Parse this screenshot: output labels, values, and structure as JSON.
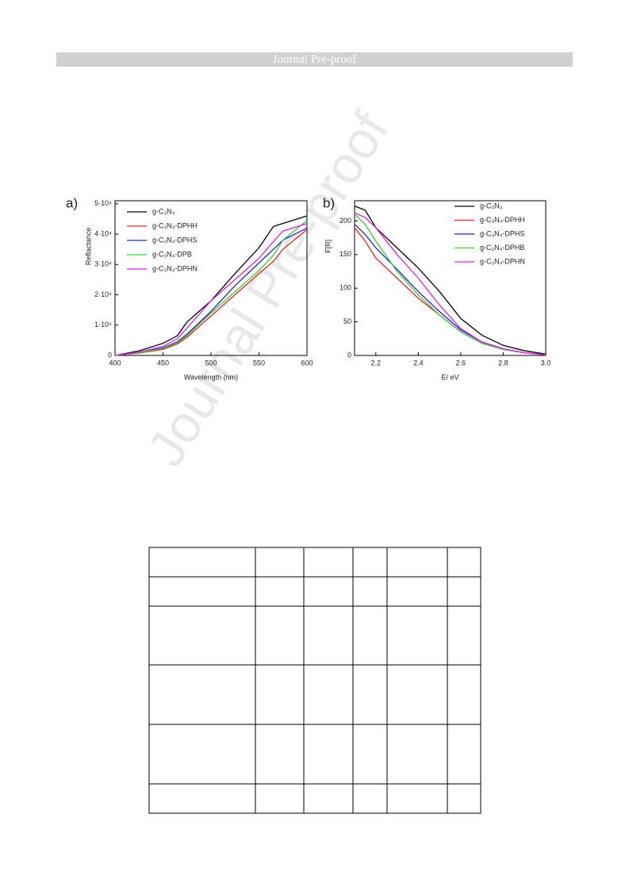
{
  "header": "Journal Pre-proof",
  "watermark": "Journal Pre-proof",
  "chart_data": [
    {
      "type": "line",
      "panel": "a)",
      "xlabel": "Wavelength (nm)",
      "ylabel": "Reflactance",
      "xlim": [
        400,
        600
      ],
      "xticks": [
        400,
        450,
        500,
        550,
        600
      ],
      "ylim": [
        0,
        51000
      ],
      "yticks": [
        0,
        {
          "value": 10000,
          "label": "1·10⁴"
        },
        {
          "value": 20000,
          "label": "2·10⁴"
        },
        {
          "value": 30000,
          "label": "3·10⁴"
        },
        {
          "value": 40000,
          "label": "4·10⁴"
        },
        {
          "value": 50000,
          "label": "5·10⁴"
        }
      ],
      "x": [
        400,
        425,
        450,
        465,
        475,
        500,
        525,
        550,
        565,
        575,
        600
      ],
      "series": [
        {
          "name": "g-C₃N₄",
          "color": "#000000",
          "values": [
            0,
            1500,
            4000,
            6500,
            11000,
            18000,
            27000,
            35500,
            42500,
            43500,
            46000
          ]
        },
        {
          "name": "g-C₃N₄-DPHH",
          "color": "#e8221c",
          "values": [
            0,
            800,
            2000,
            3800,
            6000,
            13000,
            20000,
            27000,
            31000,
            35000,
            41500
          ]
        },
        {
          "name": "g-C₃N₄-DPHS",
          "color": "#2020d0",
          "values": [
            0,
            900,
            2500,
            4500,
            7000,
            14500,
            23000,
            30500,
            35000,
            38000,
            42000
          ]
        },
        {
          "name": "g-C₃N₄-DPB",
          "color": "#30d030",
          "values": [
            0,
            900,
            2300,
            4200,
            6500,
            14000,
            21000,
            28000,
            33000,
            38000,
            44500
          ]
        },
        {
          "name": "g-C₃N₄-DPHN",
          "color": "#e020e0",
          "values": [
            0,
            1100,
            3000,
            5500,
            9000,
            18000,
            25000,
            32000,
            37500,
            41000,
            43500
          ]
        }
      ]
    },
    {
      "type": "line",
      "panel": "b)",
      "xlabel": "E/ eV",
      "ylabel": "F[R]",
      "xlim": [
        2.1,
        3.0
      ],
      "xticks": [
        2.2,
        2.4,
        2.6,
        2.8,
        {
          "value": 3,
          "label": "3.0"
        }
      ],
      "ylim": [
        0,
        230
      ],
      "yticks": [
        0,
        50,
        100,
        150,
        200
      ],
      "x": [
        2.1,
        2.15,
        2.2,
        2.3,
        2.4,
        2.5,
        2.6,
        2.7,
        2.8,
        2.9,
        3.0
      ],
      "series": [
        {
          "name": "g-C₃N₄",
          "color": "#000000",
          "values": [
            222,
            216,
            190,
            160,
            130,
            95,
            55,
            30,
            15,
            7,
            2
          ]
        },
        {
          "name": "g-C₃N₄-DPHH",
          "color": "#e8221c",
          "values": [
            190,
            170,
            145,
            115,
            85,
            60,
            35,
            18,
            9,
            4,
            1
          ]
        },
        {
          "name": "g-C₃N₄-DPHS",
          "color": "#2020d0",
          "values": [
            195,
            180,
            160,
            128,
            95,
            65,
            38,
            20,
            10,
            4,
            1
          ]
        },
        {
          "name": "g-C₃N₄-DPHB",
          "color": "#30d030",
          "values": [
            210,
            195,
            170,
            125,
            90,
            60,
            35,
            18,
            9,
            4,
            1
          ]
        },
        {
          "name": "g-C₃N₄-DPHN",
          "color": "#e020e0",
          "values": [
            212,
            205,
            190,
            150,
            115,
            75,
            40,
            20,
            10,
            4,
            1
          ]
        }
      ]
    }
  ]
}
